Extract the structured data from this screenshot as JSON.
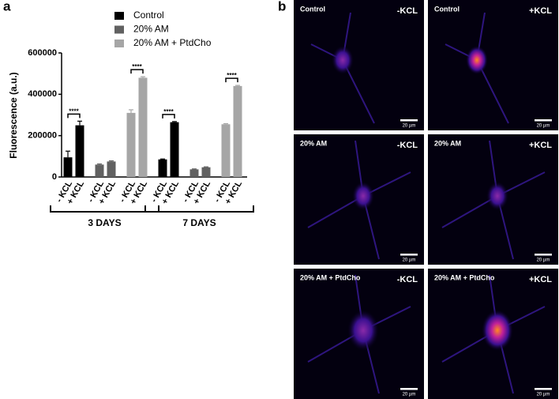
{
  "panel_labels": [
    "a",
    "b"
  ],
  "chart_data": {
    "type": "bar",
    "y_label": "Fluorescence (a.u.)",
    "categories": [
      "- KCL",
      "+ KCL",
      "- KCL",
      "+ KCL",
      "- KCL",
      "+ KCL",
      "- KCL",
      "+ KCL",
      "- KCL",
      "+ KCL",
      "- KCL",
      "+ KCL"
    ],
    "group_labels": [
      "3 DAYS",
      "7 DAYS"
    ],
    "series": [
      {
        "name": "Control",
        "color": "#000000",
        "values": [
          95000,
          250000,
          null,
          null,
          null,
          null,
          85000,
          265000,
          null,
          null,
          null,
          null
        ],
        "errors": [
          30000,
          20000,
          null,
          null,
          null,
          null,
          2000,
          3000,
          null,
          null,
          null,
          null
        ],
        "significance": [
          "****",
          "****"
        ]
      },
      {
        "name": "20% AM",
        "color": "#616161",
        "values": [
          null,
          null,
          60000,
          75000,
          null,
          null,
          null,
          null,
          37000,
          47000,
          null,
          null
        ],
        "errors": [
          null,
          null,
          3000,
          3000,
          null,
          null,
          null,
          null,
          2000,
          2000,
          null,
          null
        ]
      },
      {
        "name": "20% AM + PtdCho",
        "color": "#a6a6a6",
        "values": [
          null,
          null,
          null,
          null,
          310000,
          480000,
          null,
          null,
          null,
          null,
          255000,
          440000
        ],
        "errors": [
          null,
          null,
          null,
          null,
          15000,
          5000,
          null,
          null,
          null,
          null,
          3000,
          3000
        ],
        "significance": [
          "****",
          "****"
        ]
      }
    ],
    "ylim": [
      0,
      600000
    ],
    "yticks": [
      0,
      200000,
      400000,
      600000
    ]
  },
  "images": [
    {
      "title": "Control",
      "condition": "-KCL",
      "scale": "20 µm"
    },
    {
      "title": "Control",
      "condition": "+KCL",
      "scale": "20 µm"
    },
    {
      "title": "20% AM",
      "condition": "-KCL",
      "scale": "20 µm"
    },
    {
      "title": "20% AM",
      "condition": "+KCL",
      "scale": "20 µm"
    },
    {
      "title": "20% AM + PtdCho",
      "condition": "-KCL",
      "scale": "20 µm"
    },
    {
      "title": "20% AM + PtdCho",
      "condition": "+KCL",
      "scale": "20 µm"
    }
  ]
}
